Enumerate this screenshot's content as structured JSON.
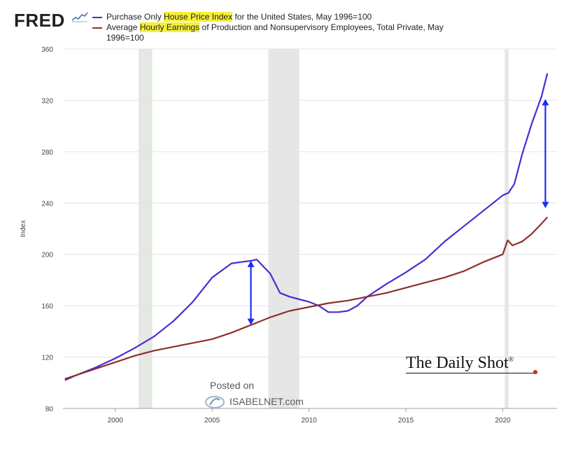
{
  "logo": {
    "text": "FRED",
    "icon": "fred-chart-icon"
  },
  "legend": [
    {
      "prefix": "Purchase Only ",
      "highlight": "House Price Index",
      "suffix": " for the United States, May 1996=100",
      "color": "#4b2bd4"
    },
    {
      "prefix": "Average ",
      "highlight": "Hourly Earnings",
      "suffix": " of Production and Nonsupervisory Employees, Total Private, May 1996=100",
      "color": "#8e2f2a"
    }
  ],
  "watermarks": {
    "brand": "The Daily Shot",
    "brand_mark": "®",
    "posted": "Posted on",
    "site": "ISABELNET.com"
  },
  "chart_data": {
    "type": "line",
    "ylabel": "Index",
    "xlabel": "",
    "ylim": [
      80,
      360
    ],
    "xlim": [
      1997.3,
      2022.8
    ],
    "yticks": [
      80,
      120,
      160,
      200,
      240,
      280,
      320,
      360
    ],
    "xticks": [
      2000,
      2005,
      2010,
      2015,
      2020
    ],
    "grid": "horizontal",
    "recessions": [
      [
        2001.2,
        2001.9
      ],
      [
        2007.9,
        2009.5
      ],
      [
        2020.1,
        2020.3
      ]
    ],
    "series": [
      {
        "name": "Purchase Only House Price Index for the United States, May 1996=100",
        "color": "#4b2bd4",
        "x": [
          1997.4,
          1998,
          1999,
          2000,
          2001,
          2002,
          2003,
          2004,
          2005,
          2006,
          2006.5,
          2007,
          2007.3,
          2008,
          2008.5,
          2009,
          2009.5,
          2010,
          2010.5,
          2011,
          2011.5,
          2012,
          2012.5,
          2013,
          2014,
          2015,
          2016,
          2017,
          2018,
          2019,
          2020,
          2020.3,
          2020.6,
          2021,
          2021.5,
          2022,
          2022.3
        ],
        "values": [
          102,
          106,
          112,
          119,
          127,
          136,
          148,
          163,
          182,
          193,
          194,
          195,
          196,
          185,
          170,
          167,
          165,
          163,
          160,
          155,
          155,
          156,
          160,
          167,
          177,
          186,
          196,
          210,
          222,
          234,
          246,
          248,
          255,
          278,
          302,
          323,
          341
        ]
      },
      {
        "name": "Average Hourly Earnings of Production and Nonsupervisory Employees, Total Private, May 1996=100",
        "color": "#8e2f2a",
        "x": [
          1997.4,
          1998,
          1999,
          2000,
          2001,
          2002,
          2003,
          2004,
          2005,
          2006,
          2007,
          2008,
          2009,
          2010,
          2011,
          2012,
          2013,
          2014,
          2015,
          2016,
          2017,
          2018,
          2019,
          2020,
          2020.25,
          2020.5,
          2021,
          2021.5,
          2022,
          2022.3
        ],
        "values": [
          103,
          106,
          111,
          116,
          121,
          125,
          128,
          131,
          134,
          139,
          145,
          151,
          156,
          159,
          162,
          164,
          167,
          170,
          174,
          178,
          182,
          187,
          194,
          200,
          211,
          207,
          210,
          216,
          224,
          229
        ]
      }
    ],
    "annotations": [
      {
        "type": "double-arrow",
        "x": 2007.0,
        "y_from": 145,
        "y_to": 195,
        "color": "#1a2ef0"
      },
      {
        "type": "double-arrow",
        "x": 2022.2,
        "y_from": 236,
        "y_to": 321,
        "color": "#1a2ef0"
      }
    ]
  }
}
